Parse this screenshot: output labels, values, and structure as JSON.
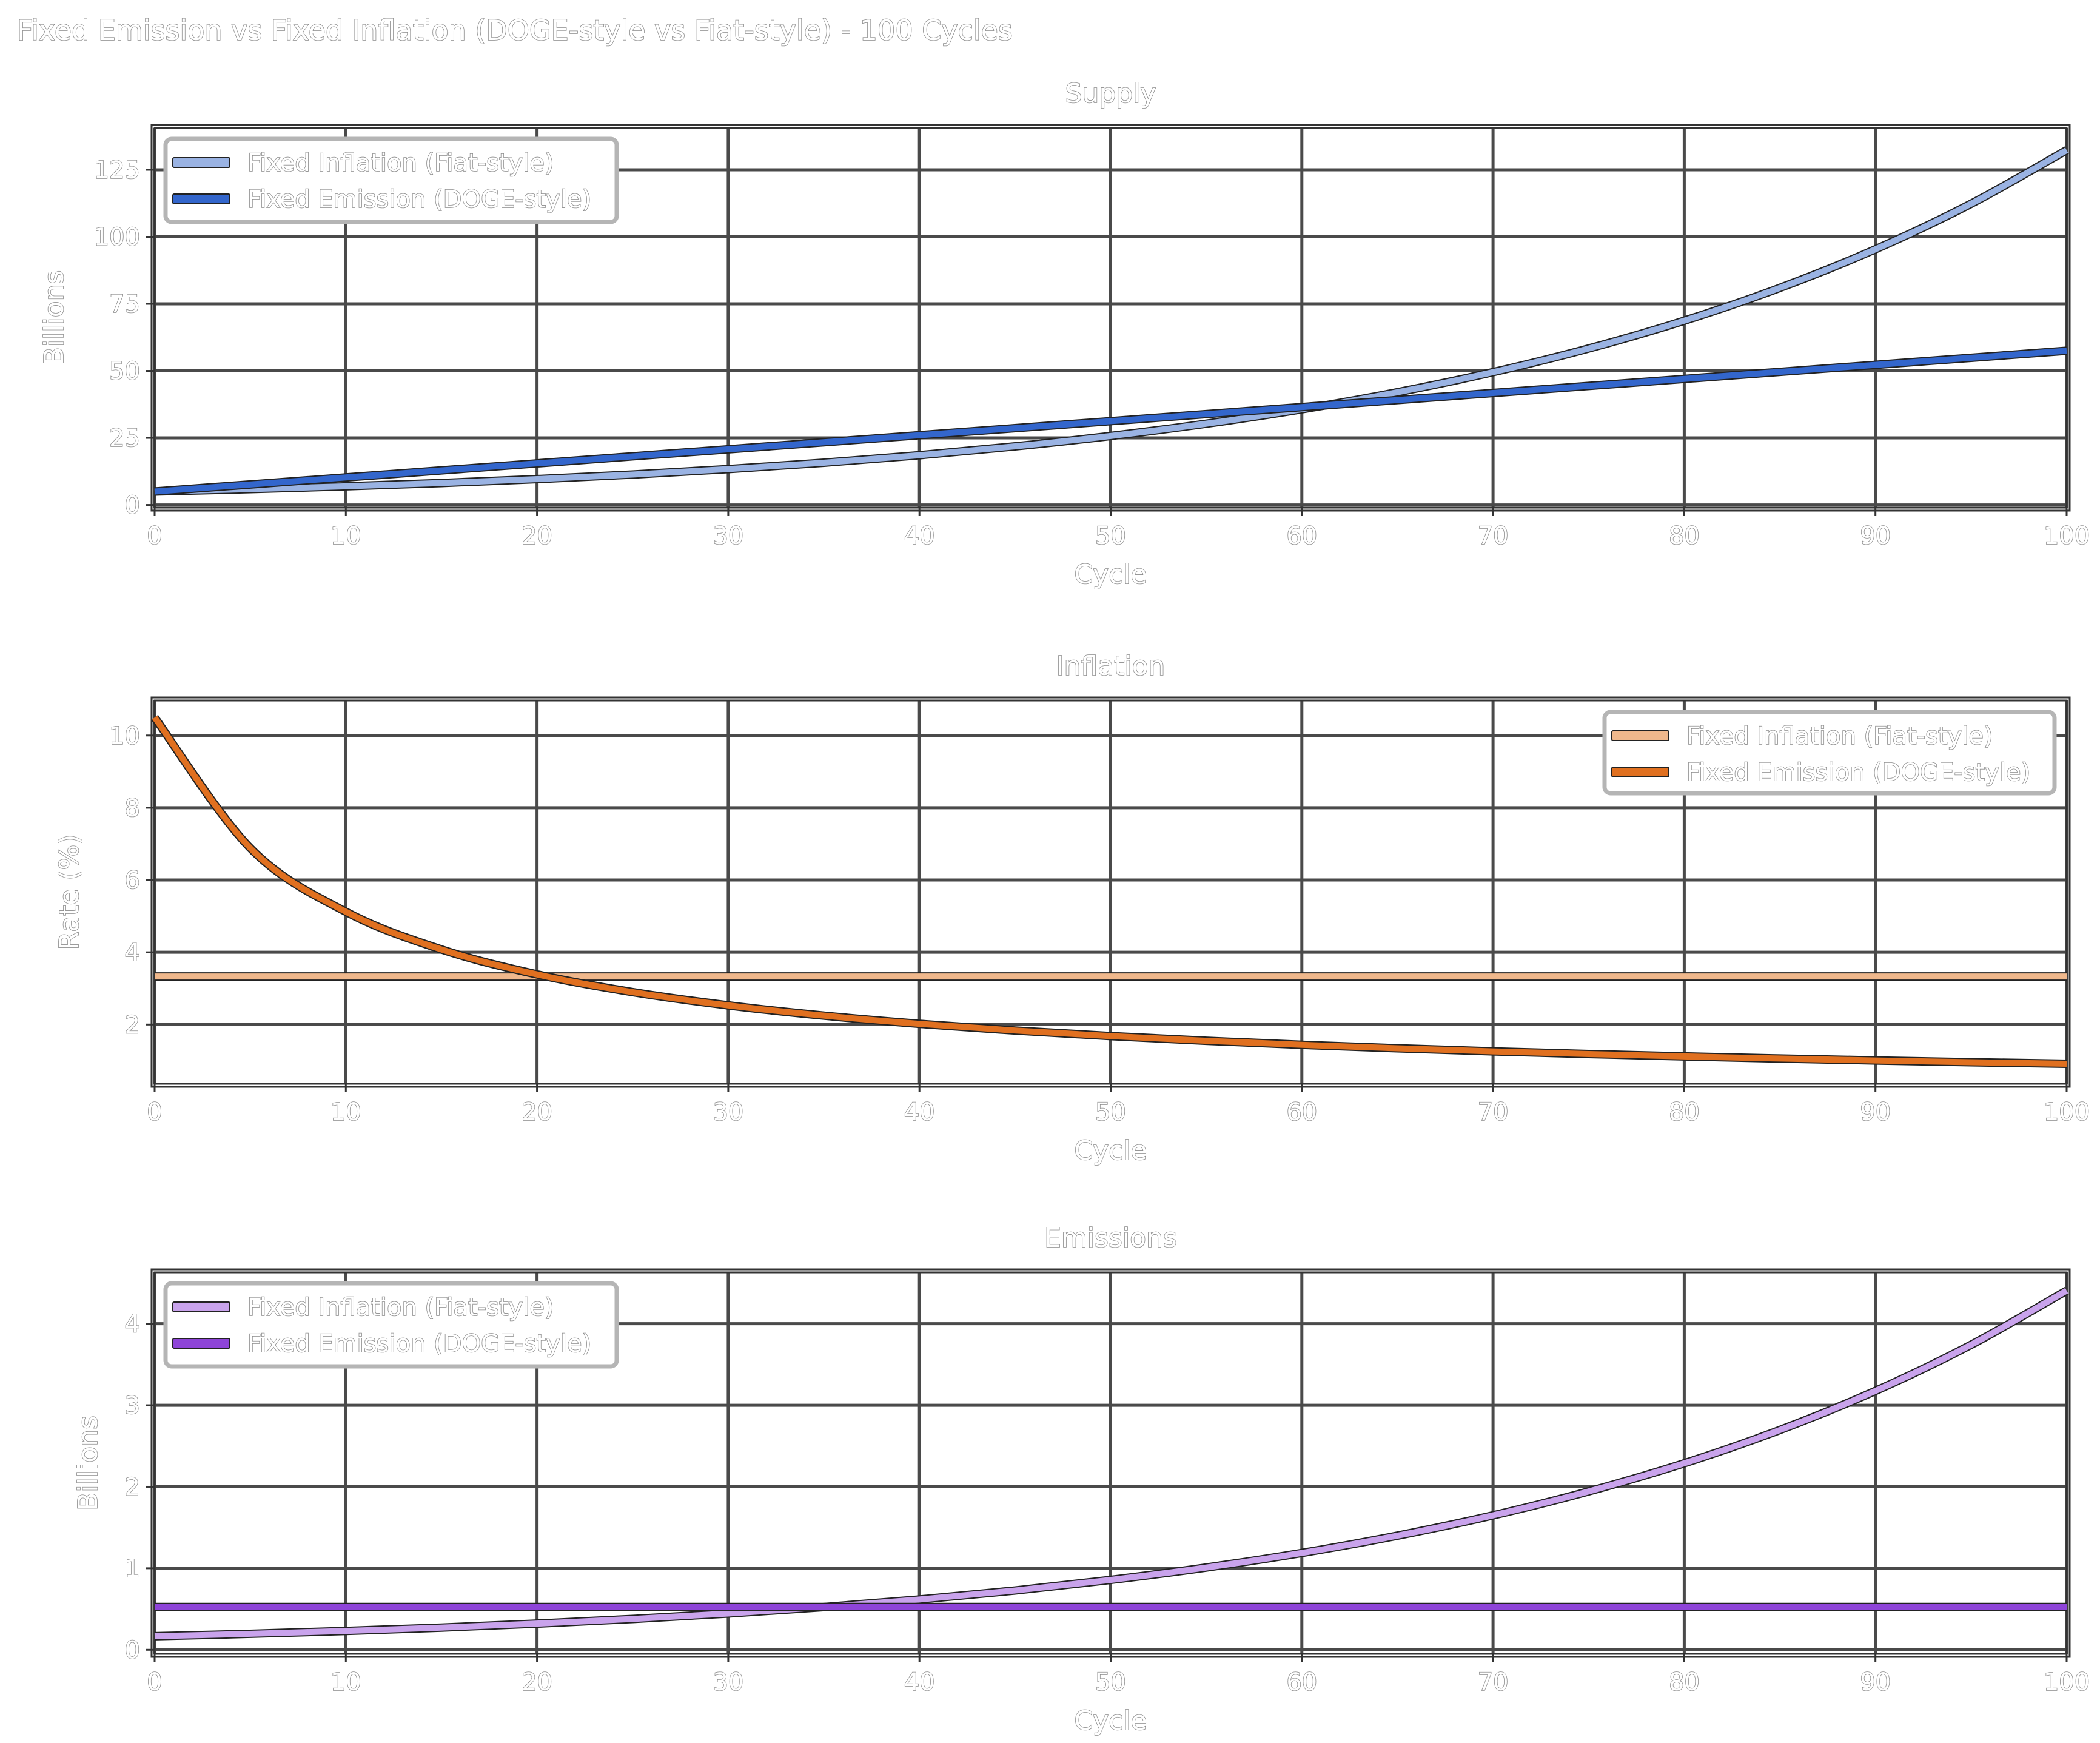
{
  "title": "Fixed Emission vs Fixed Inflation (DOGE-style vs Fiat-style) - 100 Cycles",
  "chart_data": [
    {
      "type": "line",
      "title": "Supply",
      "xlabel": "Cycle",
      "ylabel": "Billions",
      "xlim": [
        0,
        100
      ],
      "ylim": [
        -1,
        140.6
      ],
      "xticks": [
        0,
        10,
        20,
        30,
        40,
        50,
        60,
        70,
        80,
        90,
        100
      ],
      "yticks": [
        0,
        25,
        50,
        75,
        100,
        125
      ],
      "grid": true,
      "legend_position": "upper-left",
      "x": [
        0,
        5,
        10,
        15,
        20,
        25,
        30,
        35,
        40,
        45,
        50,
        55,
        60,
        65,
        70,
        75,
        80,
        85,
        90,
        95,
        100
      ],
      "series": [
        {
          "name": "Fixed Inflation (Fiat-style)",
          "color": "#9ab3e3",
          "values": [
            5,
            5.89,
            6.94,
            8.17,
            9.63,
            11.34,
            13.36,
            15.74,
            18.54,
            21.84,
            25.72,
            30.3,
            35.69,
            42.04,
            49.53,
            58.34,
            68.72,
            80.95,
            95.36,
            112.33,
            132.32
          ]
        },
        {
          "name": "Fixed Emission (DOGE-style)",
          "color": "#3366cc",
          "values": [
            5,
            7.625,
            10.25,
            12.875,
            15.5,
            18.125,
            20.75,
            23.375,
            26,
            28.625,
            31.25,
            33.875,
            36.5,
            39.125,
            41.75,
            44.375,
            47,
            49.625,
            52.25,
            54.875,
            57.5
          ]
        }
      ]
    },
    {
      "type": "line",
      "title": "Inflation",
      "xlabel": "Cycle",
      "ylabel": "Rate (%)",
      "xlim": [
        0,
        100
      ],
      "ylim": [
        0.36,
        10.97
      ],
      "xticks": [
        0,
        10,
        20,
        30,
        40,
        50,
        60,
        70,
        80,
        90,
        100
      ],
      "yticks": [
        2,
        4,
        6,
        8,
        10
      ],
      "grid": true,
      "legend_position": "upper-right",
      "x": [
        0,
        5,
        10,
        15,
        20,
        25,
        30,
        35,
        40,
        45,
        50,
        55,
        60,
        65,
        70,
        75,
        80,
        85,
        90,
        95,
        100
      ],
      "series": [
        {
          "name": "Fixed Inflation (Fiat-style)",
          "color": "#f0b88c",
          "values": [
            3.33,
            3.33,
            3.33,
            3.33,
            3.33,
            3.33,
            3.33,
            3.33,
            3.33,
            3.33,
            3.33,
            3.33,
            3.33,
            3.33,
            3.33,
            3.33,
            3.33,
            3.33,
            3.33,
            3.33,
            3.33
          ]
        },
        {
          "name": "Fixed Emission (DOGE-style)",
          "color": "#e07020",
          "values": [
            10.5,
            6.885,
            5.122,
            4.078,
            3.387,
            2.897,
            2.53,
            2.246,
            2.019,
            1.834,
            1.68,
            1.55,
            1.438,
            1.342,
            1.257,
            1.183,
            1.117,
            1.058,
            1.005,
            0.957,
            0.913
          ]
        }
      ]
    },
    {
      "type": "line",
      "title": "Emissions",
      "xlabel": "Cycle",
      "ylabel": "Billions",
      "xlim": [
        0,
        100
      ],
      "ylim": [
        -0.05,
        4.63
      ],
      "xticks": [
        0,
        10,
        20,
        30,
        40,
        50,
        60,
        70,
        80,
        90,
        100
      ],
      "yticks": [
        0,
        1,
        2,
        3,
        4
      ],
      "grid": true,
      "legend_position": "upper-left",
      "x": [
        0,
        5,
        10,
        15,
        20,
        25,
        30,
        35,
        40,
        45,
        50,
        55,
        60,
        65,
        70,
        75,
        80,
        85,
        90,
        95,
        100
      ],
      "series": [
        {
          "name": "Fixed Inflation (Fiat-style)",
          "color": "#c9a3ec",
          "values": [
            0.167,
            0.196,
            0.231,
            0.272,
            0.321,
            0.378,
            0.445,
            0.524,
            0.617,
            0.727,
            0.857,
            1.009,
            1.188,
            1.4,
            1.649,
            1.943,
            2.288,
            2.696,
            3.176,
            3.741,
            4.406
          ]
        },
        {
          "name": "Fixed Emission (DOGE-style)",
          "color": "#8e44d8",
          "values": [
            0.525,
            0.525,
            0.525,
            0.525,
            0.525,
            0.525,
            0.525,
            0.525,
            0.525,
            0.525,
            0.525,
            0.525,
            0.525,
            0.525,
            0.525,
            0.525,
            0.525,
            0.525,
            0.525,
            0.525,
            0.525
          ]
        }
      ]
    }
  ]
}
